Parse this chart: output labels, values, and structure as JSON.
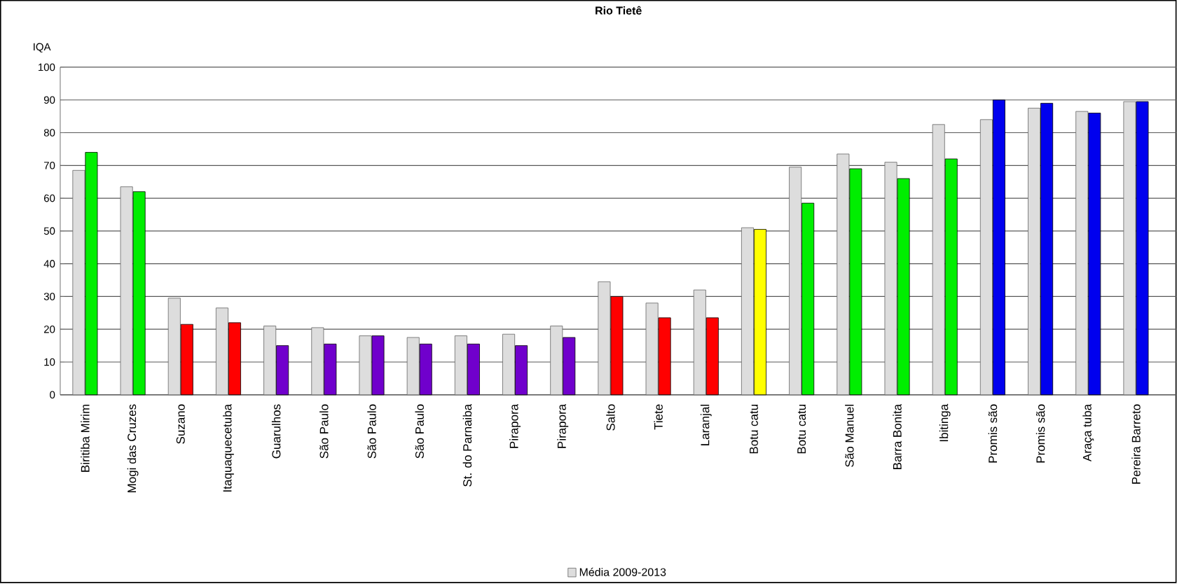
{
  "chart_data": {
    "type": "bar",
    "title": "Rio Tietê",
    "ylabel": "IQA",
    "categories": [
      "Biritiba Mirim",
      "Mogi das Cruzes",
      "Suzano",
      "Itaquaquecetuba",
      "Guarulhos",
      "São Paulo",
      "São Paulo",
      "São Paulo",
      "St. do Parnaiba",
      "Pirapora",
      "Pirapora",
      "Salto",
      "Tiete",
      "Laranjal",
      "Botu catu",
      "Botu catu",
      "São Manuel",
      "Barra Bonita",
      "Ibitinga",
      "Promis são",
      "Promis são",
      "Araça tuba",
      "Pereira Barreto"
    ],
    "series": [
      {
        "name": "Média 2009-2013",
        "color": "#dddddd",
        "values": [
          68.5,
          63.5,
          29.5,
          26.5,
          21,
          20.5,
          18,
          17.5,
          18,
          18.5,
          21,
          34.5,
          28,
          32,
          51,
          69.5,
          73.5,
          71,
          82.5,
          84,
          87.5,
          86.5,
          89.5
        ]
      },
      {
        "colors": [
          "#00ee00",
          "#00ee00",
          "#ff0000",
          "#ff0000",
          "#7000cc",
          "#7000cc",
          "#7000cc",
          "#7000cc",
          "#7000cc",
          "#7000cc",
          "#7000cc",
          "#ff0000",
          "#ff0000",
          "#ff0000",
          "#ffff00",
          "#00ee00",
          "#00ee00",
          "#00ee00",
          "#00ee00",
          "#0000ee",
          "#0000ee",
          "#0000ee",
          "#0000ee"
        ],
        "values": [
          74,
          62,
          21.5,
          22,
          15,
          15.5,
          18,
          15.5,
          15.5,
          15,
          17.5,
          30,
          23.5,
          23.5,
          50.5,
          58.5,
          69,
          66,
          72,
          90,
          89,
          86,
          89.5
        ]
      }
    ],
    "ylim": [
      0,
      100
    ],
    "yticks": [
      0,
      10,
      20,
      30,
      40,
      50,
      60,
      70,
      80,
      90,
      100
    ],
    "grid": "y",
    "legend": "bottom"
  }
}
